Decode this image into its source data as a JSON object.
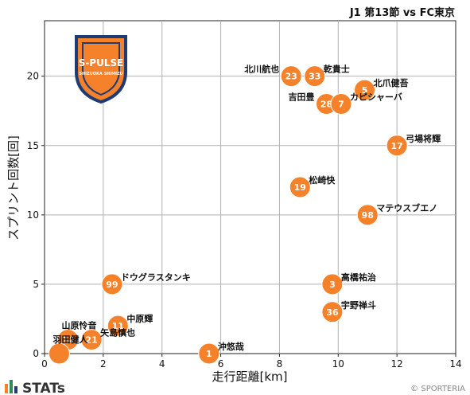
{
  "header": {
    "title": "J1 第13節 vs FC東京"
  },
  "footer": {
    "brand": "STATs",
    "copyright": "© SPORTERIA"
  },
  "logo": {
    "name": "S-PULSE",
    "subtitle": "SHIZUOKA SHIMIZU"
  },
  "chart_data": {
    "type": "scatter",
    "xlabel": "走行距離[km]",
    "ylabel": "スプリント回数[回]",
    "xlim": [
      0,
      14
    ],
    "ylim": [
      0,
      24
    ],
    "xticks": [
      0,
      2,
      4,
      6,
      8,
      10,
      12,
      14
    ],
    "yticks": [
      0,
      5,
      10,
      15,
      20
    ],
    "grid": true,
    "marker_color": "#F5812B",
    "points": [
      {
        "number": "23",
        "name": "北川航也",
        "x": 8.4,
        "y": 20,
        "label_side": "left"
      },
      {
        "number": "33",
        "name": "乾貴士",
        "x": 9.2,
        "y": 20,
        "label_side": "right"
      },
      {
        "number": "5",
        "name": "北爪健吾",
        "x": 10.9,
        "y": 19,
        "label_side": "right"
      },
      {
        "number": "28",
        "name": "吉田豊",
        "x": 9.6,
        "y": 18,
        "label_side": "left"
      },
      {
        "number": "7",
        "name": "カピシャーバ",
        "x": 10.1,
        "y": 18,
        "label_side": "right"
      },
      {
        "number": "17",
        "name": "弓場将輝",
        "x": 12.0,
        "y": 15,
        "label_side": "right"
      },
      {
        "number": "19",
        "name": "松崎快",
        "x": 8.7,
        "y": 12,
        "label_side": "right"
      },
      {
        "number": "98",
        "name": "マテウスブエノ",
        "x": 11.0,
        "y": 10,
        "label_side": "right"
      },
      {
        "number": "99",
        "name": "ドウグラスタンキ",
        "x": 2.3,
        "y": 5,
        "label_side": "right"
      },
      {
        "number": "3",
        "name": "高橋祐治",
        "x": 9.8,
        "y": 5,
        "label_side": "right"
      },
      {
        "number": "36",
        "name": "宇野禅斗",
        "x": 9.8,
        "y": 3,
        "label_side": "right"
      },
      {
        "number": "11",
        "name": "中原輝",
        "x": 2.5,
        "y": 2,
        "label_side": "right"
      },
      {
        "number": "14",
        "name": "山原怜音",
        "x": 0.8,
        "y": 1,
        "label_side": "above"
      },
      {
        "number": "21",
        "name": "矢島慎也",
        "x": 1.6,
        "y": 1,
        "label_side": "right"
      },
      {
        "number": "1",
        "name": "沖悠哉",
        "x": 5.6,
        "y": 0,
        "label_side": "right"
      },
      {
        "number": "",
        "name": "羽田健人",
        "x": 0.5,
        "y": 0,
        "label_side": "above"
      }
    ]
  }
}
